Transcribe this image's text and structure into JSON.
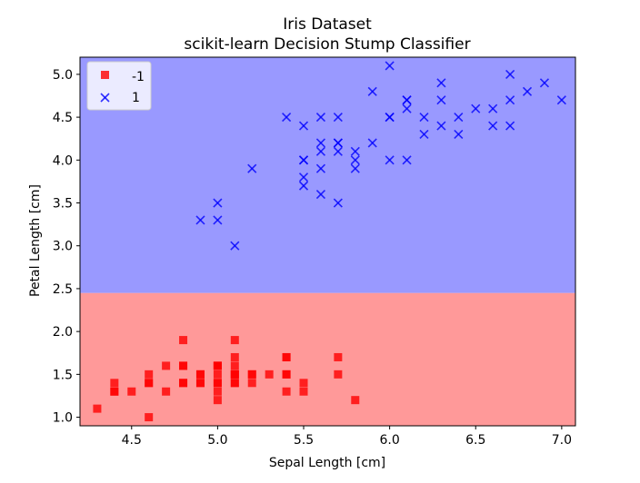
{
  "chart_data": {
    "type": "scatter",
    "title": "Iris Dataset",
    "subtitle": "scikit-learn Decision Stump Classifier",
    "xlabel": "Sepal Length [cm]",
    "ylabel": "Petal Length [cm]",
    "xlim": [
      4.2,
      7.08
    ],
    "ylim": [
      0.9,
      5.2
    ],
    "xticks": [
      "4.5",
      "5.0",
      "5.5",
      "6.0",
      "6.5",
      "7.0"
    ],
    "xtick_values": [
      4.5,
      5.0,
      5.5,
      6.0,
      6.5,
      7.0
    ],
    "yticks": [
      "1.0",
      "1.5",
      "2.0",
      "2.5",
      "3.0",
      "3.5",
      "4.0",
      "4.5",
      "5.0"
    ],
    "ytick_values": [
      1.0,
      1.5,
      2.0,
      2.5,
      3.0,
      3.5,
      4.0,
      4.5,
      5.0
    ],
    "grid": false,
    "legend_position": "top-left",
    "decision_boundary_y": 2.45,
    "regions": [
      {
        "label": "-1",
        "color": "#ff9999",
        "range": [
          0.9,
          2.45
        ]
      },
      {
        "label": "1",
        "color": "#9999ff",
        "range": [
          2.45,
          5.2
        ]
      }
    ],
    "series": [
      {
        "name": "-1",
        "marker": "square",
        "color": "#ff0000",
        "points": [
          [
            5.1,
            1.4
          ],
          [
            4.9,
            1.4
          ],
          [
            4.7,
            1.3
          ],
          [
            4.6,
            1.5
          ],
          [
            5.0,
            1.4
          ],
          [
            5.4,
            1.7
          ],
          [
            4.6,
            1.4
          ],
          [
            5.0,
            1.5
          ],
          [
            4.4,
            1.4
          ],
          [
            4.9,
            1.5
          ],
          [
            5.4,
            1.5
          ],
          [
            4.8,
            1.6
          ],
          [
            4.8,
            1.4
          ],
          [
            4.3,
            1.1
          ],
          [
            5.8,
            1.2
          ],
          [
            5.7,
            1.5
          ],
          [
            5.4,
            1.3
          ],
          [
            5.1,
            1.4
          ],
          [
            5.7,
            1.7
          ],
          [
            5.1,
            1.5
          ],
          [
            5.4,
            1.7
          ],
          [
            5.1,
            1.5
          ],
          [
            4.6,
            1.0
          ],
          [
            5.1,
            1.7
          ],
          [
            4.8,
            1.9
          ],
          [
            5.0,
            1.6
          ],
          [
            5.0,
            1.6
          ],
          [
            5.2,
            1.5
          ],
          [
            5.2,
            1.4
          ],
          [
            4.7,
            1.6
          ],
          [
            4.8,
            1.6
          ],
          [
            5.4,
            1.5
          ],
          [
            5.2,
            1.5
          ],
          [
            5.5,
            1.4
          ],
          [
            4.9,
            1.5
          ],
          [
            5.0,
            1.2
          ],
          [
            5.5,
            1.3
          ],
          [
            4.9,
            1.4
          ],
          [
            4.4,
            1.3
          ],
          [
            5.1,
            1.5
          ],
          [
            5.0,
            1.3
          ],
          [
            4.5,
            1.3
          ],
          [
            4.4,
            1.3
          ],
          [
            5.0,
            1.6
          ],
          [
            5.1,
            1.9
          ],
          [
            4.8,
            1.4
          ],
          [
            5.1,
            1.6
          ],
          [
            4.6,
            1.4
          ],
          [
            5.3,
            1.5
          ],
          [
            5.0,
            1.4
          ]
        ]
      },
      {
        "name": "1",
        "marker": "x",
        "color": "#0000ff",
        "points": [
          [
            7.0,
            4.7
          ],
          [
            6.4,
            4.5
          ],
          [
            6.9,
            4.9
          ],
          [
            5.5,
            4.0
          ],
          [
            6.5,
            4.6
          ],
          [
            5.7,
            4.5
          ],
          [
            6.3,
            4.7
          ],
          [
            4.9,
            3.3
          ],
          [
            6.6,
            4.6
          ],
          [
            5.2,
            3.9
          ],
          [
            5.0,
            3.5
          ],
          [
            5.9,
            4.2
          ],
          [
            6.0,
            4.0
          ],
          [
            6.1,
            4.7
          ],
          [
            5.6,
            3.6
          ],
          [
            6.7,
            4.4
          ],
          [
            5.6,
            4.5
          ],
          [
            5.8,
            4.1
          ],
          [
            6.2,
            4.5
          ],
          [
            5.6,
            3.9
          ],
          [
            5.9,
            4.8
          ],
          [
            6.1,
            4.0
          ],
          [
            6.3,
            4.9
          ],
          [
            6.1,
            4.7
          ],
          [
            6.4,
            4.3
          ],
          [
            6.6,
            4.4
          ],
          [
            6.8,
            4.8
          ],
          [
            6.7,
            5.0
          ],
          [
            6.0,
            4.5
          ],
          [
            5.7,
            3.5
          ],
          [
            5.5,
            3.8
          ],
          [
            5.5,
            3.7
          ],
          [
            5.8,
            3.9
          ],
          [
            6.0,
            5.1
          ],
          [
            5.4,
            4.5
          ],
          [
            6.0,
            4.5
          ],
          [
            6.7,
            4.7
          ],
          [
            6.3,
            4.4
          ],
          [
            5.6,
            4.1
          ],
          [
            5.5,
            4.0
          ],
          [
            5.5,
            4.4
          ],
          [
            6.1,
            4.6
          ],
          [
            5.8,
            4.0
          ],
          [
            5.0,
            3.3
          ],
          [
            5.6,
            4.2
          ],
          [
            5.7,
            4.2
          ],
          [
            5.7,
            4.2
          ],
          [
            6.2,
            4.3
          ],
          [
            5.1,
            3.0
          ],
          [
            5.7,
            4.1
          ]
        ]
      }
    ]
  }
}
